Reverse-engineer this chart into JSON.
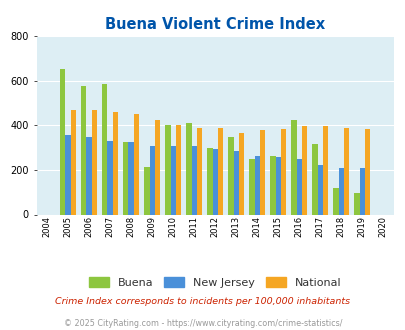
{
  "title": "Buena Violent Crime Index",
  "title_color": "#0055aa",
  "years": [
    2004,
    2005,
    2006,
    2007,
    2008,
    2009,
    2010,
    2011,
    2012,
    2013,
    2014,
    2015,
    2016,
    2017,
    2018,
    2019,
    2020
  ],
  "buena": [
    null,
    655,
    575,
    585,
    325,
    215,
    400,
    410,
    300,
    350,
    250,
    262,
    422,
    315,
    120,
    95,
    null
  ],
  "new_jersey": [
    null,
    355,
    350,
    330,
    325,
    308,
    308,
    308,
    292,
    285,
    262,
    258,
    248,
    222,
    207,
    207,
    null
  ],
  "national": [
    null,
    468,
    468,
    462,
    452,
    425,
    403,
    390,
    390,
    368,
    380,
    385,
    398,
    398,
    388,
    385,
    null
  ],
  "buena_color": "#8dc63f",
  "nj_color": "#4a90d9",
  "national_color": "#f5a623",
  "bg_color": "#ddeef4",
  "ylim": [
    0,
    800
  ],
  "yticks": [
    0,
    200,
    400,
    600,
    800
  ],
  "bar_width": 0.25,
  "legend_labels": [
    "Buena",
    "New Jersey",
    "National"
  ],
  "legend_label_color": "#333333",
  "footnote1": "Crime Index corresponds to incidents per 100,000 inhabitants",
  "footnote2": "© 2025 CityRating.com - https://www.cityrating.com/crime-statistics/",
  "footnote1_color": "#cc2200",
  "footnote2_color": "#999999"
}
